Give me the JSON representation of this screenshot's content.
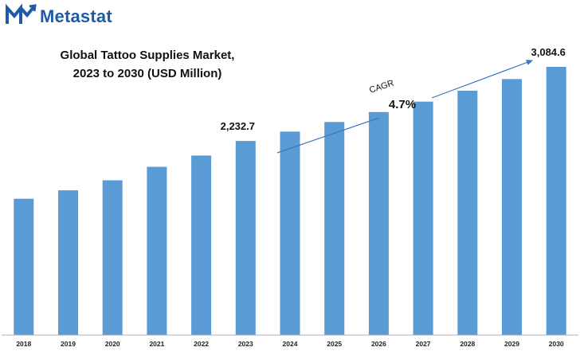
{
  "brand": {
    "name": "Metastat",
    "icon": "metastat-logo-icon"
  },
  "colors": {
    "bar": "#5b9bd5",
    "brand": "#1f5aa6",
    "arrow": "#3a78c0",
    "axis": "#b0b0b0"
  },
  "chart_data": {
    "type": "bar",
    "title_lines": [
      "Global Tattoo Supplies Market,",
      "2023 to 2030 (USD Million)"
    ],
    "categories": [
      "2018",
      "2019",
      "2020",
      "2021",
      "2022",
      "2023",
      "2024",
      "2025",
      "2026",
      "2027",
      "2028",
      "2029",
      "2030"
    ],
    "values": [
      1568,
      1665,
      1780,
      1935,
      2065,
      2232.7,
      2340,
      2450,
      2565,
      2685,
      2810,
      2945,
      3084.6
    ],
    "data_labels": [
      {
        "category": "2023",
        "text": "2,232.7"
      },
      {
        "category": "2030",
        "text": "3,084.6"
      }
    ],
    "annotation": {
      "label": "CAGR",
      "value": "4.7%"
    },
    "xlabel": "",
    "ylabel": "",
    "ylim": [
      0,
      3100
    ],
    "grid": false,
    "legend": "none"
  }
}
